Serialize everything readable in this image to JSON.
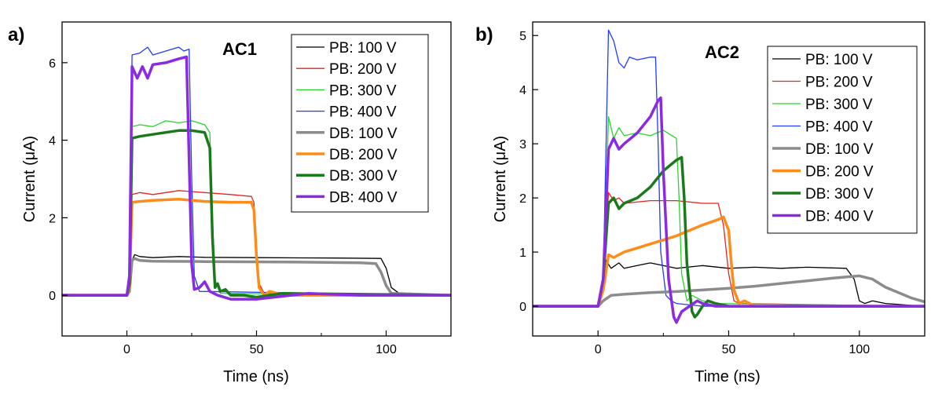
{
  "chart_data": [
    {
      "type": "line",
      "panel_label": "a)",
      "title": "AC1",
      "xlabel": "Time (ns)",
      "ylabel": "Current (μA)",
      "xlim": [
        -25,
        125
      ],
      "ylim": [
        -1.05,
        7.05
      ],
      "xticks": [
        0,
        50,
        100
      ],
      "yticks": [
        0,
        2,
        4,
        6
      ],
      "xtick_labels": [
        "0",
        "50",
        "100"
      ],
      "ytick_labels": [
        "0",
        "2",
        "4",
        "6"
      ],
      "legend_position": "top-right",
      "series": [
        {
          "name": "PB: 100 V",
          "color": "#000000",
          "width": "thin",
          "x": [
            -25,
            0,
            1,
            2,
            3,
            5,
            10,
            20,
            30,
            50,
            80,
            98,
            100,
            102,
            105,
            125
          ],
          "y": [
            0,
            0,
            0.1,
            0.9,
            1.05,
            1.0,
            0.97,
            1.0,
            0.98,
            0.97,
            0.96,
            0.95,
            0.7,
            0.2,
            0.05,
            0
          ]
        },
        {
          "name": "PB: 200 V",
          "color": "#e8231e",
          "width": "thin",
          "x": [
            -25,
            0,
            1,
            2,
            5,
            10,
            20,
            30,
            40,
            48,
            49,
            50,
            51,
            53,
            125
          ],
          "y": [
            0,
            0,
            0.2,
            2.6,
            2.65,
            2.6,
            2.7,
            2.65,
            2.6,
            2.55,
            2.4,
            1.2,
            0.3,
            0.05,
            0
          ]
        },
        {
          "name": "PB: 300 V",
          "color": "#2bd42b",
          "width": "thin",
          "x": [
            -25,
            0,
            1,
            2,
            5,
            10,
            15,
            20,
            25,
            30,
            32,
            33,
            34,
            36,
            125
          ],
          "y": [
            0,
            0,
            0.3,
            4.35,
            4.4,
            4.35,
            4.5,
            4.45,
            4.5,
            4.4,
            4.2,
            2.0,
            0.4,
            0.05,
            0
          ]
        },
        {
          "name": "PB: 400 V",
          "color": "#1f3cff",
          "width": "thin",
          "x": [
            -25,
            0,
            1,
            2,
            5,
            8,
            10,
            15,
            20,
            22,
            24,
            25,
            26,
            28,
            125
          ],
          "y": [
            0,
            0,
            0.5,
            6.2,
            6.25,
            6.4,
            6.2,
            6.3,
            6.4,
            6.3,
            6.35,
            3.0,
            0.5,
            0.1,
            0
          ]
        },
        {
          "name": "DB: 100 V",
          "color": "#8c8c8c",
          "width": "thick",
          "x": [
            -25,
            0,
            1,
            2,
            3,
            5,
            10,
            30,
            60,
            90,
            96,
            98,
            100,
            102,
            125
          ],
          "y": [
            0,
            0,
            0.1,
            0.9,
            0.95,
            0.9,
            0.88,
            0.87,
            0.86,
            0.84,
            0.82,
            0.6,
            0.25,
            0.05,
            0
          ]
        },
        {
          "name": "DB: 200 V",
          "color": "#ff8c1a",
          "width": "thick",
          "x": [
            -25,
            0,
            1,
            2,
            5,
            10,
            20,
            30,
            40,
            48,
            49,
            50,
            51,
            53,
            55,
            58,
            60,
            125
          ],
          "y": [
            0,
            0,
            0.2,
            2.4,
            2.42,
            2.45,
            2.48,
            2.42,
            2.4,
            2.4,
            2.2,
            1.0,
            0.2,
            0.0,
            0.1,
            0.05,
            0.0,
            0
          ]
        },
        {
          "name": "DB: 300 V",
          "color": "#1a7a1a",
          "width": "thick",
          "x": [
            -25,
            0,
            1,
            2,
            5,
            10,
            15,
            20,
            25,
            30,
            32,
            33,
            34,
            35,
            36,
            38,
            40,
            45,
            50,
            60,
            125
          ],
          "y": [
            0,
            0,
            0.3,
            4.05,
            4.1,
            4.15,
            4.2,
            4.25,
            4.25,
            4.2,
            3.8,
            1.5,
            0.2,
            0.3,
            0.1,
            0.15,
            0.0,
            0.0,
            -0.05,
            0.05,
            0
          ]
        },
        {
          "name": "DB: 400 V",
          "color": "#8a2be2",
          "width": "thick",
          "x": [
            -25,
            0,
            1,
            2,
            4,
            6,
            8,
            10,
            15,
            20,
            23,
            24,
            25,
            26,
            28,
            30,
            32,
            35,
            40,
            50,
            70,
            90,
            125
          ],
          "y": [
            0,
            0,
            0.5,
            5.9,
            5.6,
            5.9,
            5.6,
            5.95,
            6.0,
            6.1,
            6.15,
            3.5,
            0.8,
            0.15,
            0.2,
            0.35,
            0.1,
            0.0,
            -0.1,
            -0.1,
            0.05,
            0.0,
            0
          ]
        }
      ]
    },
    {
      "type": "line",
      "panel_label": "b)",
      "title": "AC2",
      "xlabel": "Time (ns)",
      "ylabel": "Current (μA)",
      "xlim": [
        -25,
        125
      ],
      "ylim": [
        -0.55,
        5.25
      ],
      "xticks": [
        0,
        50,
        100
      ],
      "yticks": [
        0,
        1,
        2,
        3,
        4,
        5
      ],
      "xtick_labels": [
        "0",
        "50",
        "100"
      ],
      "ytick_labels": [
        "0",
        "1",
        "2",
        "3",
        "4",
        "5"
      ],
      "legend_position": "top-right",
      "series": [
        {
          "name": "PB: 100 V",
          "color": "#000000",
          "width": "thin",
          "x": [
            -25,
            0,
            1,
            2,
            3,
            5,
            8,
            10,
            15,
            20,
            30,
            40,
            50,
            60,
            70,
            80,
            95,
            98,
            100,
            102,
            105,
            110,
            125
          ],
          "y": [
            0,
            0,
            0.1,
            0.5,
            0.85,
            0.7,
            0.8,
            0.7,
            0.75,
            0.8,
            0.7,
            0.75,
            0.7,
            0.72,
            0.7,
            0.72,
            0.7,
            0.5,
            0.1,
            0.05,
            0.1,
            0.05,
            0
          ]
        },
        {
          "name": "PB: 200 V",
          "color": "#e8231e",
          "width": "thin",
          "x": [
            -25,
            0,
            2,
            4,
            6,
            8,
            10,
            20,
            30,
            40,
            46,
            48,
            50,
            52,
            54,
            125
          ],
          "y": [
            0,
            0,
            0.3,
            2.1,
            1.95,
            2.0,
            1.9,
            1.95,
            1.95,
            1.9,
            1.9,
            1.5,
            0.6,
            0.1,
            0.05,
            0
          ]
        },
        {
          "name": "PB: 300 V",
          "color": "#2bd42b",
          "width": "thin",
          "x": [
            -25,
            0,
            2,
            4,
            6,
            8,
            10,
            15,
            20,
            25,
            30,
            31,
            32,
            34,
            36,
            40,
            45,
            125
          ],
          "y": [
            0,
            0,
            0.3,
            3.5,
            3.1,
            3.3,
            3.15,
            3.2,
            3.15,
            3.25,
            3.1,
            2.0,
            0.6,
            0.1,
            0.2,
            0.1,
            0.05,
            0
          ]
        },
        {
          "name": "PB: 400 V",
          "color": "#1f3cff",
          "width": "thin",
          "x": [
            -25,
            0,
            2,
            4,
            6,
            8,
            10,
            12,
            15,
            20,
            22,
            23,
            24,
            26,
            28,
            30,
            40,
            125
          ],
          "y": [
            0,
            0,
            0.5,
            5.1,
            4.9,
            4.5,
            4.4,
            4.6,
            4.55,
            4.6,
            4.6,
            3.0,
            1.0,
            0.2,
            0.1,
            0.05,
            0.0,
            0
          ]
        },
        {
          "name": "DB: 100 V",
          "color": "#8c8c8c",
          "width": "thick",
          "x": [
            -25,
            0,
            2,
            5,
            10,
            20,
            30,
            40,
            50,
            60,
            70,
            80,
            90,
            100,
            105,
            110,
            120,
            125
          ],
          "y": [
            0,
            0,
            0.1,
            0.2,
            0.22,
            0.25,
            0.27,
            0.3,
            0.33,
            0.37,
            0.42,
            0.47,
            0.52,
            0.56,
            0.5,
            0.35,
            0.15,
            0.08
          ]
        },
        {
          "name": "DB: 200 V",
          "color": "#ff8c1a",
          "width": "thick",
          "x": [
            -25,
            0,
            2,
            4,
            6,
            10,
            20,
            30,
            40,
            46,
            48,
            50,
            51,
            52,
            54,
            56,
            60,
            125
          ],
          "y": [
            0,
            0,
            0.3,
            0.95,
            0.9,
            1.0,
            1.15,
            1.3,
            1.5,
            1.6,
            1.65,
            1.4,
            0.8,
            0.3,
            0.05,
            0.1,
            0.0,
            0
          ]
        },
        {
          "name": "DB: 300 V",
          "color": "#1a7a1a",
          "width": "thick",
          "x": [
            -25,
            0,
            2,
            4,
            6,
            8,
            10,
            15,
            20,
            25,
            30,
            32,
            33,
            34,
            35,
            36,
            37,
            38,
            40,
            42,
            45,
            50,
            55,
            125
          ],
          "y": [
            0,
            0,
            0.5,
            1.9,
            2.0,
            1.8,
            1.9,
            2.0,
            2.2,
            2.5,
            2.7,
            2.75,
            2.0,
            0.8,
            0.3,
            -0.1,
            -0.2,
            -0.15,
            0.0,
            0.1,
            0.05,
            0.0,
            0.0,
            0
          ]
        },
        {
          "name": "DB: 400 V",
          "color": "#8a2be2",
          "width": "thick",
          "x": [
            -25,
            0,
            2,
            4,
            6,
            8,
            10,
            15,
            20,
            23,
            24,
            25,
            27,
            29,
            30,
            32,
            35,
            38,
            40,
            45,
            50,
            125
          ],
          "y": [
            0,
            0,
            0.5,
            2.9,
            3.1,
            2.9,
            3.0,
            3.2,
            3.5,
            3.8,
            3.85,
            2.5,
            0.5,
            -0.2,
            -0.3,
            -0.1,
            0.0,
            0.1,
            0.05,
            0.0,
            0.0,
            0
          ]
        }
      ]
    }
  ]
}
